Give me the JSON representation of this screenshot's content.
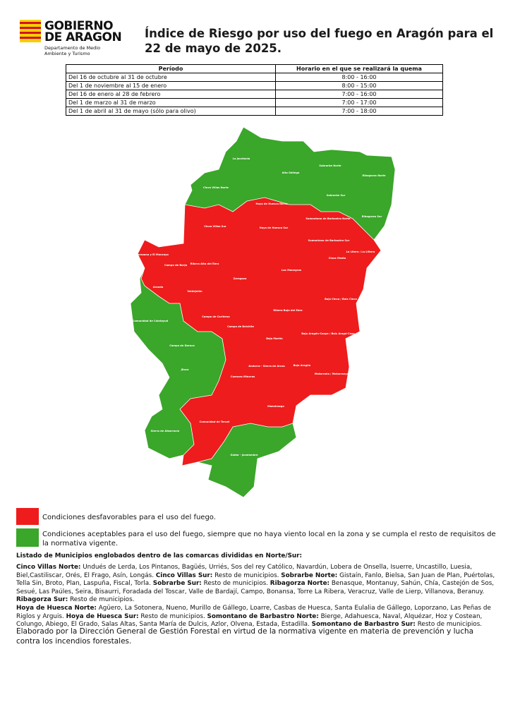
{
  "header": {
    "logo_lines": [
      "GOBIERNO",
      "DE ARAGON"
    ],
    "department": "Departamento de Medio Ambiente y Turismo",
    "title": "Índice de Riesgo por uso del fuego en Aragón para el 22 de mayo de 2025."
  },
  "table": {
    "headers": [
      "Período",
      "Horario en el que se realizará la quema"
    ],
    "rows": [
      [
        "Del 16 de octubre al 31 de octubre",
        "8:00 - 16:00"
      ],
      [
        "Del 1 de noviembre al 15 de enero",
        "8:00 - 15:00"
      ],
      [
        "Del 16 de enero al 28 de febrero",
        "7:00 - 16:00"
      ],
      [
        "Del 1 de marzo al 31 de marzo",
        "7:00 - 17:00"
      ],
      [
        "Del 1 de abril al 31 de mayo (sólo para olivo)",
        "7:00 - 18:00"
      ]
    ]
  },
  "map": {
    "regions": [
      "La Jacetania",
      "Alto Gállego",
      "Sobrarbe Norte",
      "Ribagorza Norte",
      "Cinco Villas Norte",
      "Hoya de Huesca Norte",
      "Sobrarbe Sur",
      "Ribagorza Sur",
      "Somontano de Barbastro Norte",
      "Cinco Villas Sur",
      "Hoya de Huesca Sur",
      "Somontano de Barbastro Sur",
      "La Litera / La Llitera",
      "Cinca Medio",
      "Tarazona y El Moncayo",
      "Campo de Borja",
      "Ribera Alta del Ebro",
      "Los Monegros",
      "Zaragoza",
      "Aranda",
      "Valdejalón",
      "Bajo Cinca / Baix Cinca",
      "Ribera Baja del Ebro",
      "Campo de Cariñena",
      "Comunidad de Calatayud",
      "Campo de Belchite",
      "Bajo Aragón-Caspe / Baix Aragó-Casp",
      "Bajo Martín",
      "Campo de Daroca",
      "Andorra - Sierra de Arcos",
      "Bajo Aragón",
      "Jiloca",
      "Matarraña / Matarranya",
      "Cuencas Mineras",
      "Maestrazgo",
      "Comunidad de Teruel",
      "Sierra de Albarracín",
      "Gúdar - Javalambre"
    ]
  },
  "legend": [
    {
      "color": "#ee1c1c",
      "label": "Condiciones desfavorables para el uso del fuego."
    },
    {
      "color": "#3aa62a",
      "label": "Condiciones aceptables para el uso del fuego, siempre que no haya viento local en la zona y se cumpla el resto de requisitos de la normativa vigente."
    }
  ],
  "listing": {
    "title": "Listado de Municipios englobados dentro de las comarcas divididas en Norte/Sur:",
    "paragraphs": [
      [
        {
          "zone": "Cinco Villas Norte:",
          "municipalities": "Undués de Lerda, Los Pintanos, Bagüés, Urriés, Sos del rey Católico, Navardún, Lobera de Onsella, Isuerre, Uncastillo, Luesia, Biel,Castiliscar, Orés, El Frago, Asín, Longás."
        },
        {
          "zone": "Cinco Villas Sur:",
          "municipalities": "Resto de municipios."
        },
        {
          "zone": "Sobrarbe Norte:",
          "municipalities": "Gistaín, Fanlo, Bielsa, San Juan de Plan, Puértolas, Tella Sin, Broto, Plan, Laspuña, Fiscal, Torla."
        },
        {
          "zone": "Sobrarbe Sur:",
          "municipalities": "Resto de municipios."
        },
        {
          "zone": "Ribagorza Norte:",
          "municipalities": "Benasque, Montanuy, Sahún, Chía, Castejón de Sos, Sesué, Las Paúles, Seira, Bisaurri, Foradada del Toscar, Valle de Bardají, Campo, Bonansa, Torre La Ribera, Veracruz, Valle de Lierp, Villanova, Beranuy."
        }
      ],
      [
        {
          "zone": "Ribagorza Sur:",
          "municipalities": "Resto de municipios."
        }
      ],
      [
        {
          "zone": "Hoya de Huesca Norte:",
          "municipalities": "Agüero, La Sotonera, Nueno, Murillo de Gállego, Loarre, Casbas de Huesca, Santa Eulalia de Gállego, Loporzano, Las Peñas de Riglos y Arguis."
        },
        {
          "zone": "Hoya de Huesca Sur:",
          "municipalities": "Resto de municipios."
        },
        {
          "zone": "Somontano de Barbastro Norte:",
          "municipalities": "Bierge, Adahuesca, Naval, Alquézar, Hoz y Costean, Colungo, Abiego, El Grado, Salas Altas, Santa María de Dulcis, Azlor, Olvena, Estada, Estadilla."
        },
        {
          "zone": "Somontano de Barbastro Sur:",
          "municipalities": "Resto de municipios."
        }
      ]
    ]
  },
  "footer": "Elaborado por la Dirección General de Gestión Forestal en virtud de la normativa vigente en materia de prevención y lucha contra los incendios forestales."
}
